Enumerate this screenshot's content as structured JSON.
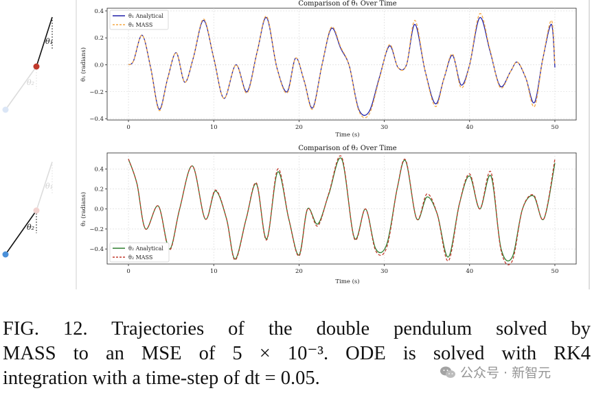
{
  "caption": {
    "line1": "FIG. 12.    Trajectories of the double pendulum solved by",
    "line2": "MASS to an MSE of 5 × 10⁻³.  ODE is solved with RK4",
    "line3": "integration with a time-step of dt = 0.05."
  },
  "watermark": {
    "text": "公众号 · 新智元",
    "icon": "wechat-icon"
  },
  "pendulum": {
    "top_label_1": "θ₁",
    "top_label_2": "θ₂",
    "bottom_label_1": "θ₁",
    "bottom_label_2": "θ₂",
    "colors": {
      "bob1": "#c0392b",
      "bob2": "#4a90d9",
      "faint": "#d9d9d9"
    }
  },
  "chart_data": [
    {
      "type": "line",
      "title": "Comparison of θ₁ Over Time",
      "xlabel": "Time (s)",
      "ylabel": "θ₁ (radians)",
      "xlim": [
        -2.5,
        52.5
      ],
      "ylim": [
        -0.41,
        0.42
      ],
      "xticks": [
        0,
        10,
        20,
        30,
        40,
        50
      ],
      "yticks": [
        -0.4,
        -0.2,
        0.0,
        0.2,
        0.4
      ],
      "grid": true,
      "legend": "top-left",
      "series": [
        {
          "name": "θ₁ Analytical",
          "color": "#1f1fa8",
          "dash": "solid",
          "x": [
            0,
            0.6,
            1.6,
            2.6,
            3.6,
            4.6,
            5.6,
            6.6,
            7.6,
            8.8,
            10.0,
            11.2,
            12.6,
            13.9,
            15.1,
            16.2,
            17.4,
            18.6,
            19.6,
            20.6,
            21.6,
            22.7,
            23.8,
            24.9,
            25.9,
            27.0,
            28.2,
            29.4,
            30.6,
            31.6,
            32.6,
            33.6,
            34.8,
            36.0,
            37.0,
            38.0,
            39.0,
            40.0,
            41.2,
            42.4,
            43.6,
            44.8,
            45.6,
            46.6,
            47.6,
            48.6,
            49.6,
            50.0
          ],
          "values": [
            0,
            0.03,
            0.22,
            -0.02,
            -0.33,
            -0.1,
            0.09,
            -0.13,
            0.05,
            0.33,
            0.05,
            -0.25,
            0.0,
            -0.2,
            0.1,
            0.35,
            -0.02,
            -0.2,
            0.05,
            -0.12,
            -0.32,
            0.0,
            0.27,
            0.12,
            -0.01,
            -0.33,
            -0.35,
            -0.1,
            0.14,
            -0.02,
            0.0,
            0.3,
            -0.05,
            -0.29,
            -0.1,
            0.07,
            -0.15,
            0.0,
            0.35,
            0.1,
            -0.16,
            -0.05,
            0.02,
            -0.1,
            -0.28,
            0.05,
            0.3,
            -0.02
          ]
        },
        {
          "name": "θ₁ MASS",
          "color": "#f5a742",
          "dash": "dashed",
          "x": [
            0,
            0.6,
            1.6,
            2.6,
            3.6,
            4.6,
            5.6,
            6.6,
            7.6,
            8.8,
            10.0,
            11.2,
            12.6,
            13.9,
            15.1,
            16.2,
            17.4,
            18.6,
            19.6,
            20.6,
            21.6,
            22.7,
            23.8,
            24.9,
            25.9,
            27.0,
            28.2,
            29.4,
            30.6,
            31.6,
            32.6,
            33.6,
            34.8,
            36.0,
            37.0,
            38.0,
            39.0,
            40.0,
            41.2,
            42.4,
            43.6,
            44.8,
            45.6,
            46.6,
            47.6,
            48.6,
            49.6,
            50.0
          ],
          "values": [
            0,
            0.03,
            0.22,
            -0.02,
            -0.34,
            -0.1,
            0.09,
            -0.13,
            0.05,
            0.34,
            0.05,
            -0.25,
            0.0,
            -0.21,
            0.1,
            0.36,
            -0.02,
            -0.21,
            0.05,
            -0.12,
            -0.33,
            0.0,
            0.28,
            0.13,
            -0.01,
            -0.34,
            -0.37,
            -0.11,
            0.15,
            -0.02,
            0.0,
            0.33,
            -0.05,
            -0.31,
            -0.1,
            0.08,
            -0.17,
            0.0,
            0.38,
            0.11,
            -0.17,
            -0.05,
            0.02,
            -0.1,
            -0.31,
            0.05,
            0.33,
            0.0
          ]
        }
      ]
    },
    {
      "type": "line",
      "title": "Comparison of θ₂ Over Time",
      "xlabel": "Time (s)",
      "ylabel": "θ₂ (radians)",
      "xlim": [
        -2.5,
        52.5
      ],
      "ylim": [
        -0.55,
        0.56
      ],
      "xticks": [
        0,
        10,
        20,
        30,
        40,
        50
      ],
      "yticks": [
        -0.4,
        -0.2,
        0.0,
        0.2,
        0.4
      ],
      "grid": true,
      "legend": "bottom-left",
      "series": [
        {
          "name": "θ₂ Analytical",
          "color": "#2e7d2e",
          "dash": "solid",
          "x": [
            0,
            1.0,
            2.0,
            3.5,
            4.8,
            6.0,
            7.5,
            9.0,
            10.2,
            11.5,
            12.5,
            13.8,
            15.0,
            16.2,
            17.5,
            18.8,
            20.0,
            21.0,
            22.2,
            23.5,
            25.0,
            26.5,
            27.8,
            29.0,
            30.3,
            31.5,
            32.5,
            33.8,
            35.0,
            36.2,
            37.5,
            38.8,
            40.0,
            41.2,
            42.5,
            43.7,
            45.0,
            46.2,
            47.5,
            48.7,
            50.0
          ],
          "values": [
            0.5,
            0.25,
            -0.2,
            0.03,
            -0.4,
            0.0,
            0.43,
            -0.1,
            0.18,
            -0.1,
            -0.5,
            -0.1,
            0.25,
            -0.3,
            0.37,
            -0.1,
            -0.46,
            0.0,
            -0.15,
            0.15,
            0.5,
            -0.29,
            0.0,
            -0.4,
            -0.35,
            0.2,
            0.48,
            -0.1,
            0.12,
            -0.05,
            -0.48,
            0.05,
            0.33,
            0.0,
            0.33,
            -0.4,
            -0.48,
            0.0,
            0.13,
            -0.1,
            0.46
          ]
        },
        {
          "name": "θ₂ MASS",
          "color": "#c0392b",
          "dash": "dashed",
          "x": [
            0,
            1.0,
            2.0,
            3.5,
            4.8,
            6.0,
            7.5,
            9.0,
            10.2,
            11.5,
            12.5,
            13.8,
            15.0,
            16.2,
            17.5,
            18.8,
            20.0,
            21.0,
            22.2,
            23.5,
            25.0,
            26.5,
            27.8,
            29.0,
            30.3,
            31.5,
            32.5,
            33.8,
            35.0,
            36.2,
            37.5,
            38.8,
            40.0,
            41.2,
            42.5,
            43.7,
            45.0,
            46.2,
            47.5,
            48.7,
            50.0
          ],
          "values": [
            0.5,
            0.25,
            -0.2,
            0.03,
            -0.41,
            0.0,
            0.43,
            -0.1,
            0.19,
            -0.1,
            -0.51,
            -0.1,
            0.26,
            -0.31,
            0.4,
            -0.1,
            -0.47,
            0.0,
            -0.17,
            0.16,
            0.52,
            -0.3,
            0.0,
            -0.42,
            -0.38,
            0.2,
            0.49,
            -0.1,
            0.15,
            -0.05,
            -0.52,
            0.05,
            0.35,
            0.0,
            0.37,
            -0.42,
            -0.52,
            0.0,
            0.14,
            -0.1,
            0.5
          ]
        }
      ]
    }
  ]
}
